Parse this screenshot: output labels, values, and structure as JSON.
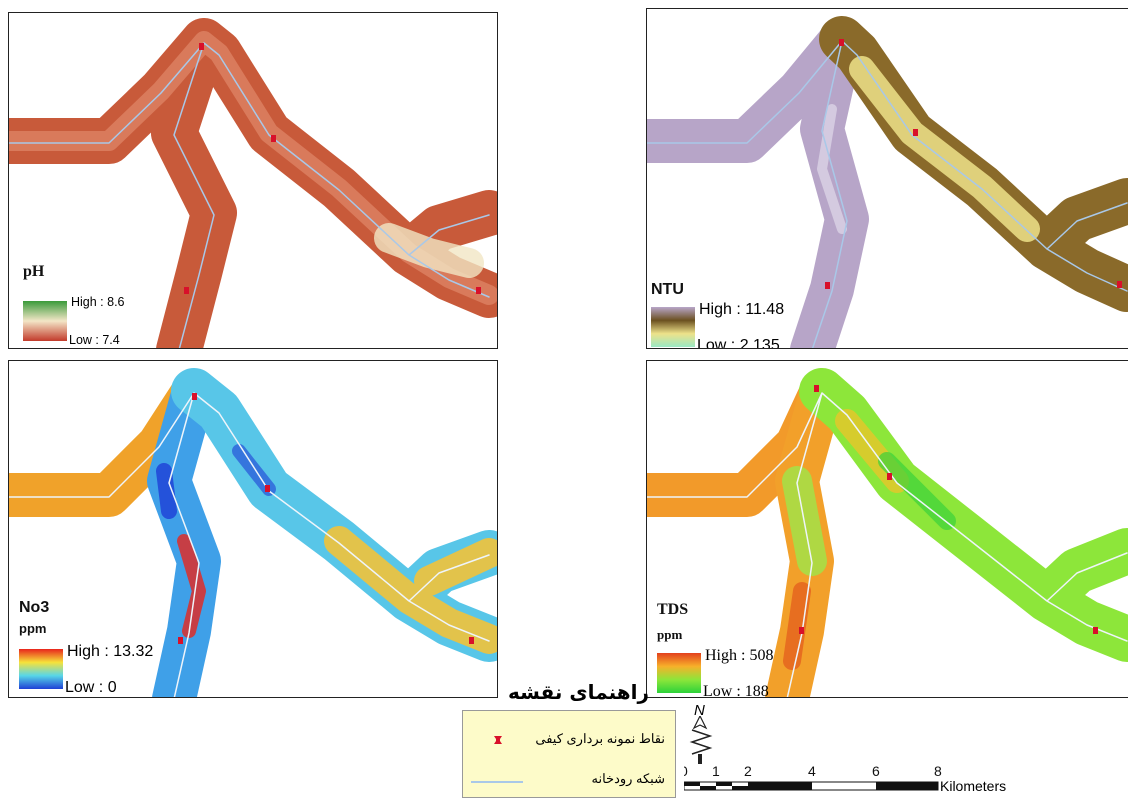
{
  "panels": {
    "ph": {
      "title": "pH",
      "unit": "",
      "high": "High : 8.6",
      "low": "Low : 7.4",
      "colors": [
        "#3a9a3a",
        "#f3e6c7",
        "#c23a2a"
      ]
    },
    "ntu": {
      "title": "NTU",
      "unit": "",
      "high": "High : 11.48",
      "low": "Low : 2.135",
      "colors": [
        "#b8a6c9",
        "#6b5020",
        "#ede28a",
        "#9be8c4"
      ]
    },
    "no3": {
      "title": "No3",
      "unit": "ppm",
      "high": "High : 13.32",
      "low": "Low : 0",
      "colors": [
        "#e8251c",
        "#f7e23a",
        "#58d6e8",
        "#1e3fd6"
      ]
    },
    "tds": {
      "title": "TDS",
      "unit": "ppm",
      "high": "High : 508",
      "low": "Low : 188",
      "colors": [
        "#e3401c",
        "#f7b02a",
        "#8de63a",
        "#2bd23a"
      ]
    }
  },
  "map_key": {
    "title": "راهنمای نقشه",
    "sampling_points": "نقاط نمونه برداری کیفی",
    "river_network": "شبکه رودخانه"
  },
  "north_arrow": "N",
  "scale": {
    "ticks": [
      "0",
      "1",
      "2",
      "4",
      "6",
      "8"
    ],
    "units": "Kilometers"
  }
}
